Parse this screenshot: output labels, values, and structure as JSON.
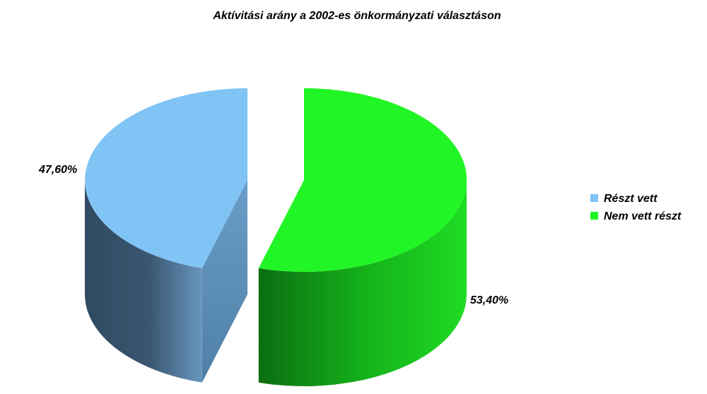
{
  "chart_data": {
    "type": "pie",
    "title": "Aktívitási arány a 2002-es önkormányzati választáson",
    "categories": [
      "Részt vett",
      "Nem vett részt"
    ],
    "values": [
      47.6,
      53.4
    ],
    "value_labels": [
      "47,60%",
      "53,40%"
    ],
    "colors": [
      "#80C4F5",
      "#22F526"
    ],
    "legend_position": "right",
    "style": "3d-exploded"
  }
}
